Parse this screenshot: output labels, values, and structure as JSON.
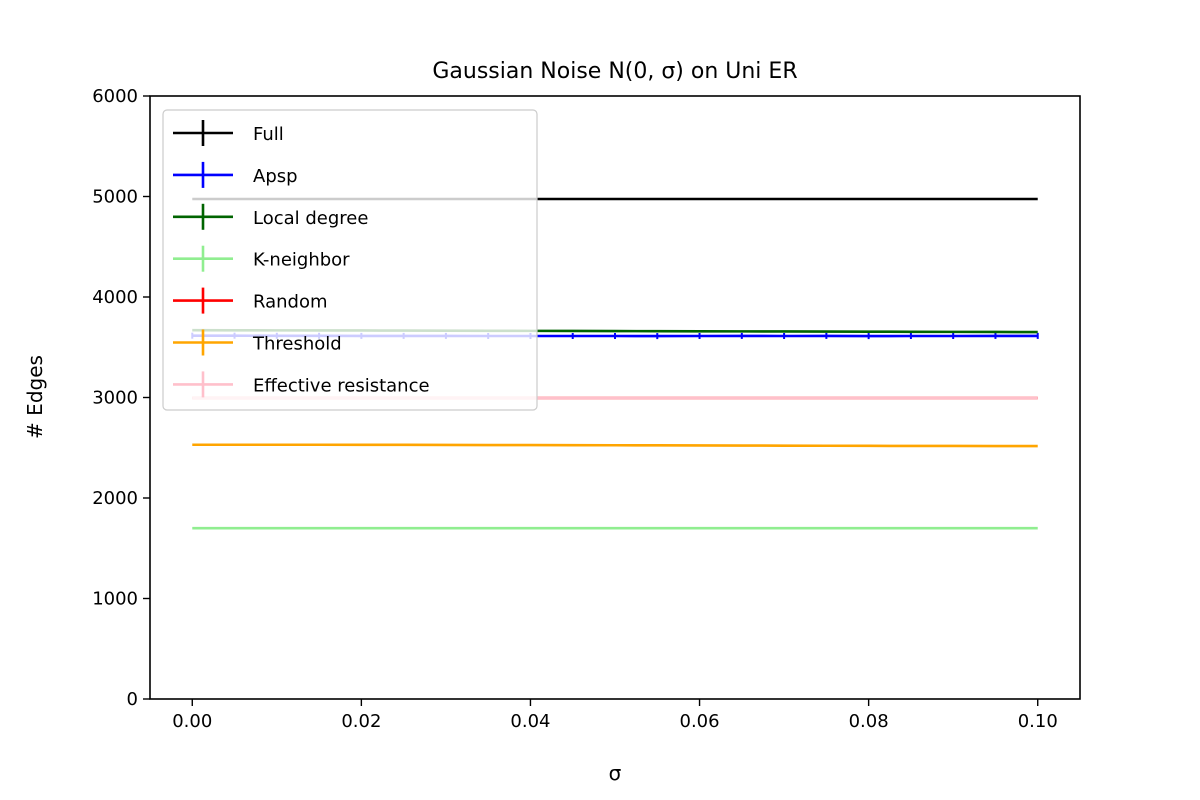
{
  "chart_data": {
    "type": "line",
    "title": "Gaussian Noise N(0, σ) on Uni ER",
    "xlabel": "σ",
    "ylabel": "# Edges",
    "xlim": [
      -0.005,
      0.105
    ],
    "ylim": [
      0,
      6000
    ],
    "xticks": [
      "0.00",
      "0.02",
      "0.04",
      "0.06",
      "0.08",
      "0.10"
    ],
    "yticks": [
      "0",
      "1000",
      "2000",
      "3000",
      "4000",
      "5000",
      "6000"
    ],
    "grid": false,
    "legend_position": "upper-left",
    "x": [
      0.0,
      0.005,
      0.01,
      0.015,
      0.02,
      0.025,
      0.03,
      0.035,
      0.04,
      0.045,
      0.05,
      0.055,
      0.06,
      0.065,
      0.07,
      0.075,
      0.08,
      0.085,
      0.09,
      0.095,
      0.1
    ],
    "series": [
      {
        "name": "Full",
        "color": "#000000",
        "values": [
          4975,
          4975,
          4975,
          4975,
          4975,
          4975,
          4975,
          4975,
          4975,
          4975,
          4975,
          4975,
          4975,
          4975,
          4975,
          4975,
          4975,
          4975,
          4975,
          4975,
          4975
        ]
      },
      {
        "name": "Apsp",
        "color": "#0000ff",
        "values": [
          3615,
          3615,
          3614,
          3614,
          3613,
          3613,
          3613,
          3612,
          3612,
          3612,
          3612,
          3611,
          3612,
          3613,
          3612,
          3613,
          3611,
          3612,
          3612,
          3613,
          3613
        ],
        "error": 30
      },
      {
        "name": "Local degree",
        "color": "#006400",
        "values": [
          3670,
          3669,
          3668,
          3667,
          3667,
          3666,
          3665,
          3664,
          3663,
          3662,
          3661,
          3660,
          3659,
          3658,
          3657,
          3656,
          3655,
          3654,
          3653,
          3652,
          3651
        ]
      },
      {
        "name": "K-neighbor",
        "color": "#90ee90",
        "values": [
          1700,
          1700,
          1700,
          1700,
          1700,
          1700,
          1700,
          1700,
          1700,
          1700,
          1700,
          1700,
          1700,
          1700,
          1700,
          1700,
          1700,
          1700,
          1700,
          1700,
          1700
        ]
      },
      {
        "name": "Random",
        "color": "#ff0000",
        "values": [
          2995,
          2995,
          2995,
          2995,
          2995,
          2995,
          2995,
          2995,
          2995,
          2995,
          2995,
          2995,
          2995,
          2995,
          2995,
          2995,
          2995,
          2995,
          2995,
          2995,
          2995
        ]
      },
      {
        "name": "Threshold",
        "color": "#ffa500",
        "values": [
          2530,
          2530,
          2530,
          2530,
          2529,
          2529,
          2528,
          2527,
          2527,
          2526,
          2525,
          2524,
          2523,
          2522,
          2521,
          2520,
          2519,
          2518,
          2518,
          2517,
          2517
        ]
      },
      {
        "name": "Effective resistance",
        "color": "#ffc0cb",
        "values": [
          2995,
          2995,
          2995,
          2995,
          2995,
          2995,
          2995,
          2995,
          2995,
          2995,
          2995,
          2995,
          2995,
          2995,
          2995,
          2995,
          2995,
          2995,
          2995,
          2995,
          2995
        ]
      }
    ]
  }
}
